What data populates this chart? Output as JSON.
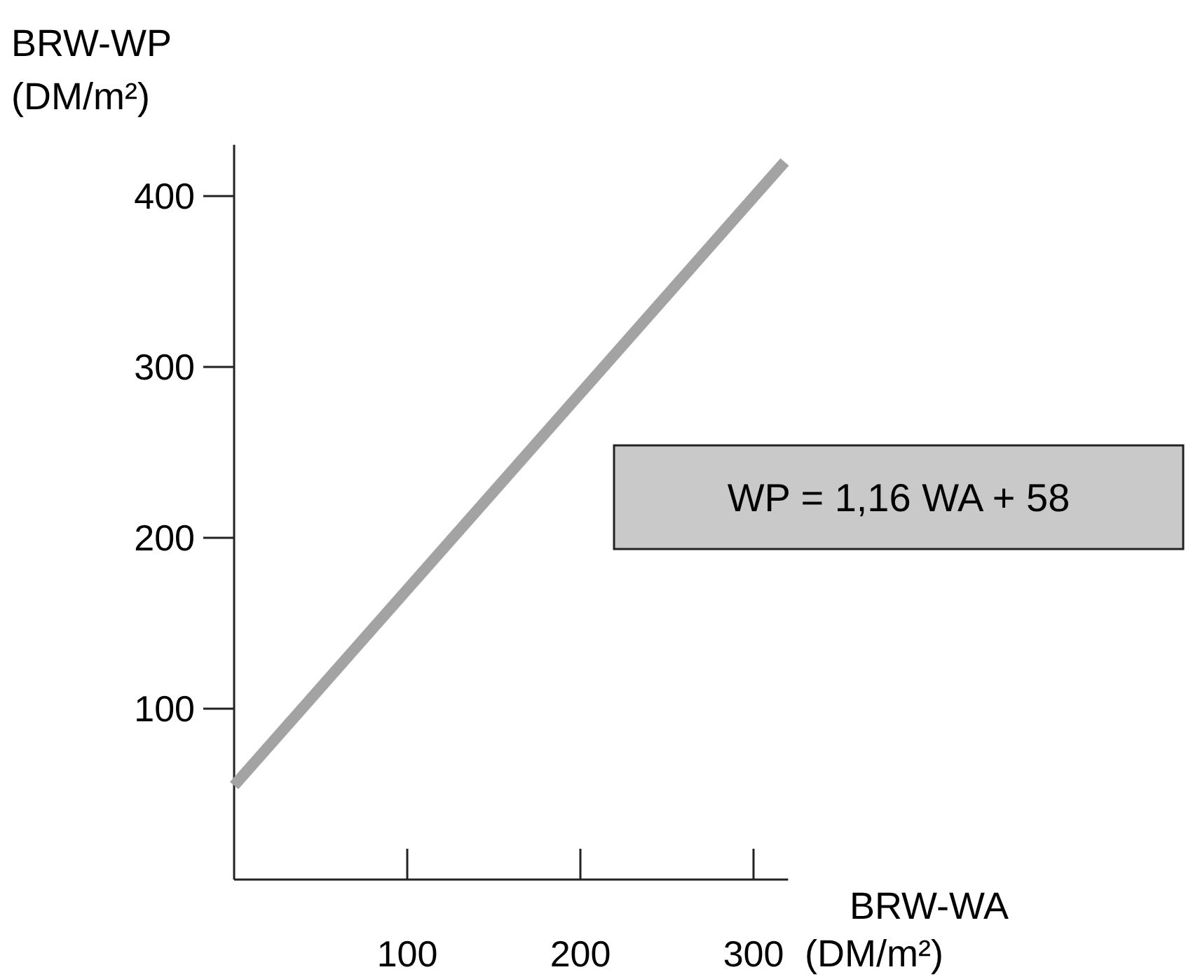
{
  "chart_data": {
    "type": "line",
    "xlabel": "BRW-WA\n(DM/m²)",
    "ylabel": "BRW-WP\n(DM/m²)",
    "x": [
      0,
      318
    ],
    "series": [
      {
        "color": "#a3a3a3",
        "values": [
          55,
          420
        ]
      }
    ],
    "xlim": [
      0,
      320
    ],
    "ylim": [
      0,
      430
    ],
    "xticks": [
      100,
      200,
      300
    ],
    "yticks": [
      100,
      200,
      300,
      400
    ],
    "annotations": [
      "WP = 1,16 WA + 58"
    ],
    "marker": "none",
    "line_style": "solid"
  }
}
